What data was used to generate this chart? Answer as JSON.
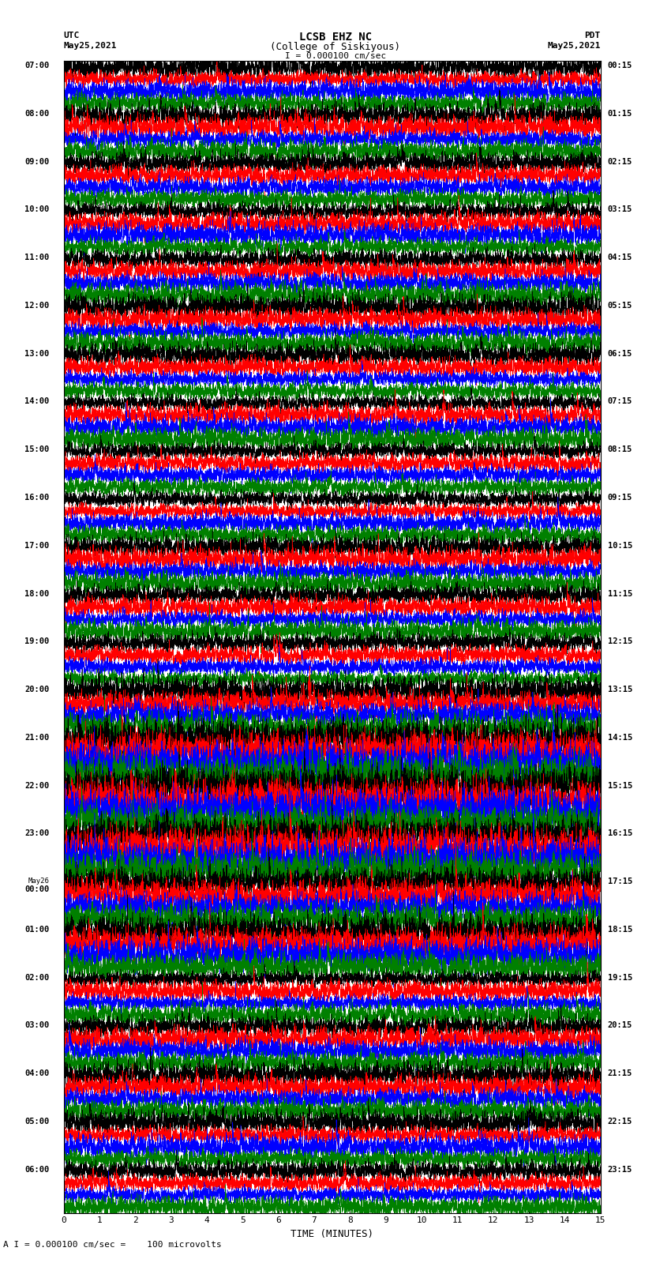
{
  "title_line1": "LCSB EHZ NC",
  "title_line2": "(College of Siskiyous)",
  "scale_text": "I = 0.000100 cm/sec",
  "bottom_text": "A I = 0.000100 cm/sec =    100 microvolts",
  "utc_label": "UTC",
  "utc_date": "May25,2021",
  "pdt_label": "PDT",
  "pdt_date": "May25,2021",
  "xlabel": "TIME (MINUTES)",
  "time_minutes": 15,
  "background_color": "#ffffff",
  "trace_colors": [
    "#000000",
    "#ff0000",
    "#0000ff",
    "#008000"
  ],
  "fig_width": 8.5,
  "fig_height": 16.13,
  "utc_hours": [
    "07:00",
    "08:00",
    "09:00",
    "10:00",
    "11:00",
    "12:00",
    "13:00",
    "14:00",
    "15:00",
    "16:00",
    "17:00",
    "18:00",
    "19:00",
    "20:00",
    "21:00",
    "22:00",
    "23:00",
    "May26\n00:00",
    "01:00",
    "02:00",
    "03:00",
    "04:00",
    "05:00",
    "06:00"
  ],
  "pdt_hours": [
    "00:15",
    "01:15",
    "02:15",
    "03:15",
    "04:15",
    "05:15",
    "06:15",
    "07:15",
    "08:15",
    "09:15",
    "10:15",
    "11:15",
    "12:15",
    "13:15",
    "14:15",
    "15:15",
    "16:15",
    "17:15",
    "18:15",
    "19:15",
    "20:15",
    "21:15",
    "22:15",
    "23:15"
  ]
}
